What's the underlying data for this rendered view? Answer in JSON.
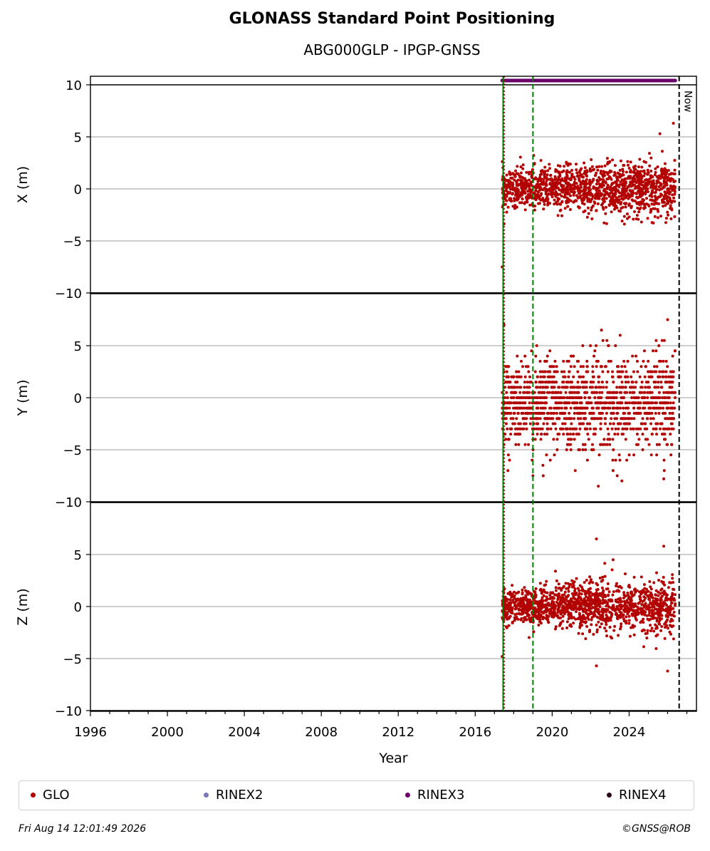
{
  "header": {
    "title": "GLONASS Standard Point Positioning",
    "subtitle": "ABG000GLP - IPGP-GNSS"
  },
  "footer": {
    "timestamp": "Fri Aug 14 12:01:49 2026",
    "credit": "©GNSS@ROB"
  },
  "legend": [
    {
      "label": "GLO",
      "color": "#b30000"
    },
    {
      "label": "RINEX2",
      "color": "#7b78b8"
    },
    {
      "label": "RINEX3",
      "color": "#6a0069"
    },
    {
      "label": "RINEX4",
      "color": "#2a0a1a"
    }
  ],
  "chart_data": {
    "type": "scatter",
    "xlabel": "Year",
    "xlim": [
      1996,
      2027.5
    ],
    "xticks": [
      "1996",
      "2000",
      "2004",
      "2008",
      "2012",
      "2016",
      "2020",
      "2024"
    ],
    "grid": true,
    "panels": [
      {
        "ylabel": "X (m)",
        "ylim": [
          -10,
          10
        ],
        "yticks": [
          "10",
          "5",
          "0",
          "−5",
          "−10"
        ],
        "series": [
          {
            "name": "GLO",
            "x_range": [
              2017.4,
              2026.4
            ],
            "y_center": 0.0,
            "y_spread_start": 1.2,
            "y_spread_end": 1.6,
            "outliers": [
              [
                2017.4,
                -7.5
              ],
              [
                2026.3,
                6.3
              ],
              [
                2025.6,
                5.3
              ]
            ]
          }
        ]
      },
      {
        "ylabel": "Y (m)",
        "ylim": [
          -10,
          10
        ],
        "yticks": [
          "5",
          "0",
          "−5",
          "−10"
        ],
        "series": [
          {
            "name": "GLO",
            "x_range": [
              2017.4,
              2026.4
            ],
            "y_center": -0.5,
            "y_spread_start": 2.5,
            "y_spread_end": 3.0,
            "outliers": [
              [
                2017.5,
                7.0
              ],
              [
                2019.0,
                -7.5
              ],
              [
                2022.4,
                -8.5
              ],
              [
                2026.0,
                7.5
              ],
              [
                2025.8,
                -7.8
              ]
            ]
          }
        ]
      },
      {
        "ylabel": "Z (m)",
        "ylim": [
          -10,
          10
        ],
        "yticks": [
          "5",
          "0",
          "−5",
          "−10"
        ],
        "series": [
          {
            "name": "GLO",
            "x_range": [
              2017.4,
              2026.4
            ],
            "y_center": 0.0,
            "y_spread_start": 1.1,
            "y_spread_end": 1.7,
            "outliers": [
              [
                2022.3,
                6.5
              ],
              [
                2022.3,
                -5.7
              ],
              [
                2025.8,
                5.8
              ],
              [
                2026.0,
                -6.2
              ],
              [
                2017.4,
                -4.8
              ]
            ]
          }
        ]
      }
    ],
    "rinex3_bar": {
      "x_range": [
        2017.4,
        2026.4
      ],
      "color": "#6a0069"
    },
    "vlines": [
      {
        "x": 2017.45,
        "style": "solid",
        "color": "#008000"
      },
      {
        "x": 2017.5,
        "style": "dotted",
        "color": "#b30000"
      },
      {
        "x": 2019.0,
        "style": "dashed",
        "color": "#008000"
      },
      {
        "x": 2026.6,
        "style": "dashed",
        "color": "#000000",
        "label": "Now"
      }
    ]
  }
}
